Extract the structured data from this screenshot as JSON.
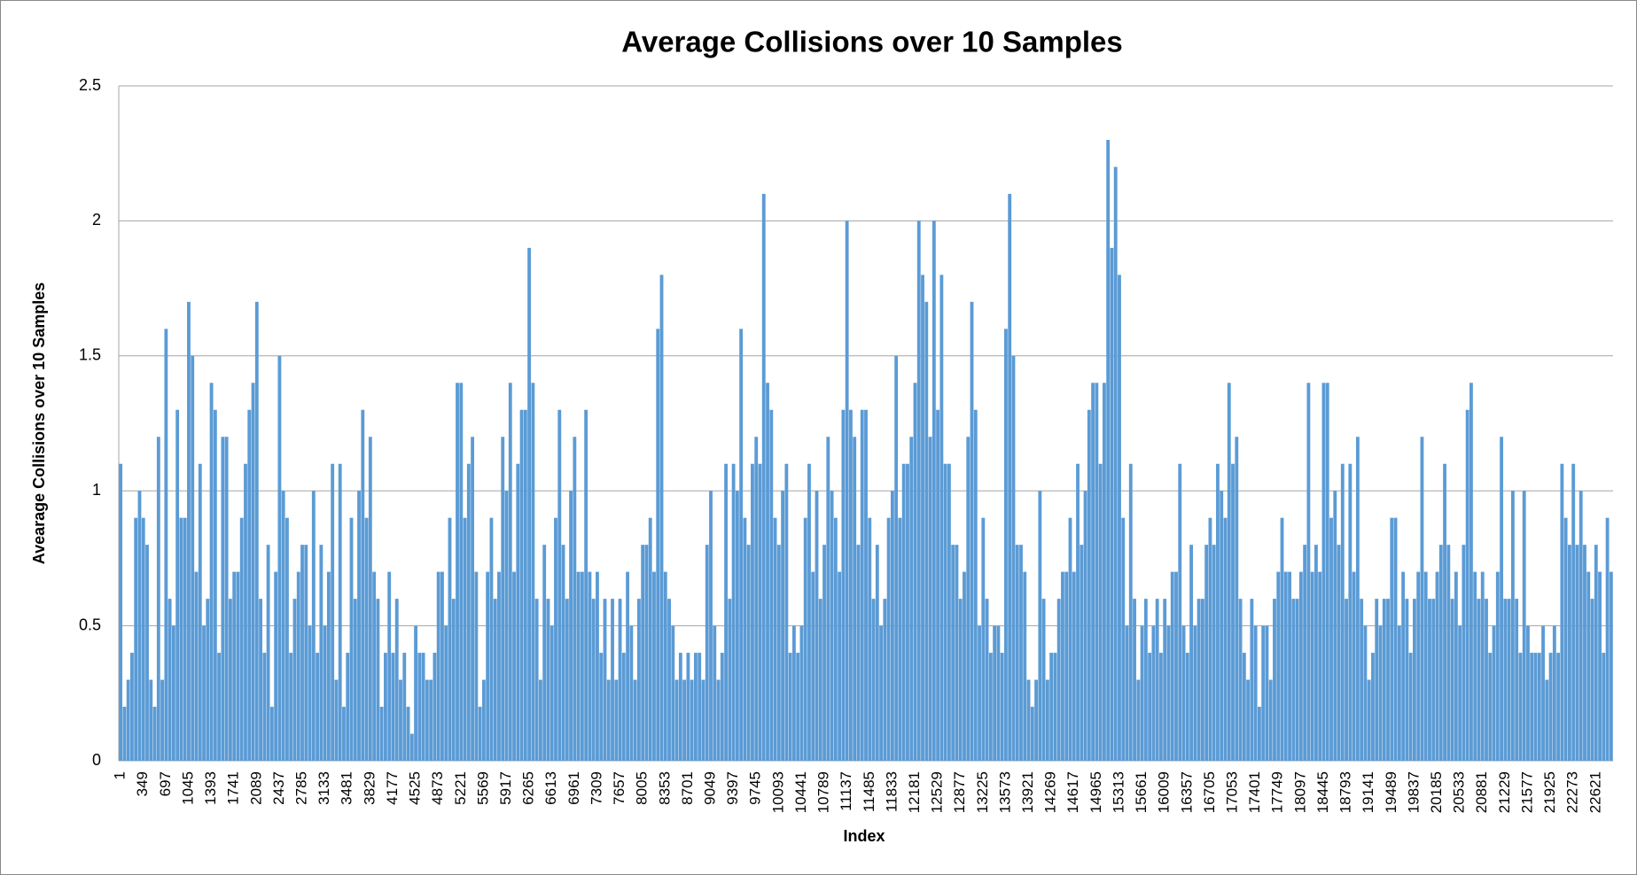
{
  "chart_data": {
    "type": "bar",
    "title": "Average Collisions over 10 Samples",
    "x_label": "Index",
    "y_label": "Avearage Collisions over 10 Samples",
    "color": "#5b9bd5",
    "grid": true,
    "ylim": [
      0,
      2.5
    ],
    "yticks": [
      0,
      0.5,
      1,
      1.5,
      2,
      2.5
    ],
    "categories": [
      1,
      null,
      null,
      null,
      null,
      null,
      349,
      null,
      null,
      null,
      null,
      null,
      697,
      null,
      null,
      null,
      null,
      null,
      1045,
      null,
      null,
      null,
      null,
      null,
      1393,
      null,
      null,
      null,
      null,
      null,
      1741,
      null,
      null,
      null,
      null,
      null,
      2089,
      null,
      null,
      null,
      null,
      null,
      2437,
      null,
      null,
      null,
      null,
      null,
      2785,
      null,
      null,
      null,
      null,
      null,
      3133,
      null,
      null,
      null,
      null,
      null,
      3481,
      null,
      null,
      null,
      null,
      null,
      3829,
      null,
      null,
      null,
      null,
      null,
      4177,
      null,
      null,
      null,
      null,
      null,
      4525,
      null,
      null,
      null,
      null,
      null,
      4873,
      null,
      null,
      null,
      null,
      null,
      5221,
      null,
      null,
      null,
      null,
      null,
      5569,
      null,
      null,
      null,
      null,
      null,
      5917,
      null,
      null,
      null,
      null,
      null,
      6265,
      null,
      null,
      null,
      null,
      null,
      6613,
      null,
      null,
      null,
      null,
      null,
      6961,
      null,
      null,
      null,
      null,
      null,
      7309,
      null,
      null,
      null,
      null,
      null,
      7657,
      null,
      null,
      null,
      null,
      null,
      8005,
      null,
      null,
      null,
      null,
      null,
      8353,
      null,
      null,
      null,
      null,
      null,
      8701,
      null,
      null,
      null,
      null,
      null,
      9049,
      null,
      null,
      null,
      null,
      null,
      9397,
      null,
      null,
      null,
      null,
      null,
      9745,
      null,
      null,
      null,
      null,
      null,
      10093,
      null,
      null,
      null,
      null,
      null,
      10441,
      null,
      null,
      null,
      null,
      null,
      10789,
      null,
      null,
      null,
      null,
      null,
      11137,
      null,
      null,
      null,
      null,
      null,
      11485,
      null,
      null,
      null,
      null,
      null,
      11833,
      null,
      null,
      null,
      null,
      null,
      12181,
      null,
      null,
      null,
      null,
      null,
      12529,
      null,
      null,
      null,
      null,
      null,
      12877,
      null,
      null,
      null,
      null,
      null,
      13225,
      null,
      null,
      null,
      null,
      null,
      13573,
      null,
      null,
      null,
      null,
      null,
      13921,
      null,
      null,
      null,
      null,
      null,
      14269,
      null,
      null,
      null,
      null,
      null,
      14617,
      null,
      null,
      null,
      null,
      null,
      14965,
      null,
      null,
      null,
      null,
      null,
      15313,
      null,
      null,
      null,
      null,
      null,
      15661,
      null,
      null,
      null,
      null,
      null,
      16009,
      null,
      null,
      null,
      null,
      null,
      16357,
      null,
      null,
      null,
      null,
      null,
      16705,
      null,
      null,
      null,
      null,
      null,
      17053,
      null,
      null,
      null,
      null,
      null,
      17401,
      null,
      null,
      null,
      null,
      null,
      17749,
      null,
      null,
      null,
      null,
      null,
      18097,
      null,
      null,
      null,
      null,
      null,
      18445,
      null,
      null,
      null,
      null,
      null,
      18793,
      null,
      null,
      null,
      null,
      null,
      19141,
      null,
      null,
      null,
      null,
      null,
      19489,
      null,
      null,
      null,
      null,
      null,
      19837,
      null,
      null,
      null,
      null,
      null,
      20185,
      null,
      null,
      null,
      null,
      null,
      20533,
      null,
      null,
      null,
      null,
      null,
      20881,
      null,
      null,
      null,
      null,
      null,
      21229,
      null,
      null,
      null,
      null,
      null,
      21577,
      null,
      null,
      null,
      null,
      null,
      21925,
      null,
      null,
      null,
      null,
      null,
      22273,
      null,
      null,
      null,
      null,
      null,
      22621,
      null,
      null,
      null,
      null
    ],
    "values": [
      1.1,
      0.2,
      0.3,
      0.4,
      0.9,
      1.0,
      0.9,
      0.8,
      0.3,
      0.2,
      1.2,
      0.3,
      1.6,
      0.6,
      0.5,
      1.3,
      0.9,
      0.9,
      1.7,
      1.5,
      0.7,
      1.1,
      0.5,
      0.6,
      1.4,
      1.3,
      0.4,
      1.2,
      1.2,
      0.6,
      0.7,
      0.7,
      0.9,
      1.1,
      1.3,
      1.4,
      1.7,
      0.6,
      0.4,
      0.8,
      0.2,
      0.7,
      1.5,
      1.0,
      0.9,
      0.4,
      0.6,
      0.7,
      0.8,
      0.8,
      0.5,
      1.0,
      0.4,
      0.8,
      0.5,
      0.7,
      1.1,
      0.3,
      1.1,
      0.2,
      0.4,
      0.9,
      0.6,
      1.0,
      1.3,
      0.9,
      1.2,
      0.7,
      0.6,
      0.2,
      0.4,
      0.7,
      0.4,
      0.6,
      0.3,
      0.4,
      0.2,
      0.1,
      0.5,
      0.4,
      0.4,
      0.3,
      0.3,
      0.4,
      0.7,
      0.7,
      0.5,
      0.9,
      0.6,
      1.4,
      1.4,
      0.9,
      1.1,
      1.2,
      0.7,
      0.2,
      0.3,
      0.7,
      0.9,
      0.6,
      0.7,
      1.2,
      1.0,
      1.4,
      0.7,
      1.1,
      1.3,
      1.3,
      1.9,
      1.4,
      0.6,
      0.3,
      0.8,
      0.6,
      0.5,
      0.9,
      1.3,
      0.8,
      0.6,
      1.0,
      1.2,
      0.7,
      0.7,
      1.3,
      0.7,
      0.6,
      0.7,
      0.4,
      0.6,
      0.3,
      0.6,
      0.3,
      0.6,
      0.4,
      0.7,
      0.5,
      0.3,
      0.6,
      0.8,
      0.8,
      0.9,
      0.7,
      1.6,
      1.8,
      0.7,
      0.6,
      0.5,
      0.3,
      0.4,
      0.3,
      0.4,
      0.3,
      0.4,
      0.4,
      0.3,
      0.8,
      1.0,
      0.5,
      0.3,
      0.4,
      1.1,
      0.6,
      1.1,
      1.0,
      1.6,
      0.9,
      0.8,
      1.1,
      1.2,
      1.1,
      2.1,
      1.4,
      1.3,
      0.9,
      0.8,
      1.0,
      1.1,
      0.4,
      0.5,
      0.4,
      0.5,
      0.9,
      1.1,
      0.7,
      1.0,
      0.6,
      0.8,
      1.2,
      1.0,
      0.9,
      0.7,
      1.3,
      2.0,
      1.3,
      1.2,
      0.8,
      1.3,
      1.3,
      0.9,
      0.6,
      0.8,
      0.5,
      0.6,
      0.9,
      1.0,
      1.5,
      0.9,
      1.1,
      1.1,
      1.2,
      1.4,
      2.0,
      1.8,
      1.7,
      1.2,
      2.0,
      1.3,
      1.8,
      1.1,
      1.1,
      0.8,
      0.8,
      0.6,
      0.7,
      1.2,
      1.7,
      1.3,
      0.5,
      0.9,
      0.6,
      0.4,
      0.5,
      0.5,
      0.4,
      1.6,
      2.1,
      1.5,
      0.8,
      0.8,
      0.7,
      0.3,
      0.2,
      0.3,
      1.0,
      0.6,
      0.3,
      0.4,
      0.4,
      0.6,
      0.7,
      0.7,
      0.9,
      0.7,
      1.1,
      0.8,
      1.0,
      1.3,
      1.4,
      1.4,
      1.1,
      1.4,
      2.3,
      1.9,
      2.2,
      1.8,
      0.9,
      0.5,
      1.1,
      0.6,
      0.3,
      0.5,
      0.6,
      0.4,
      0.5,
      0.6,
      0.4,
      0.6,
      0.5,
      0.7,
      0.7,
      1.1,
      0.5,
      0.4,
      0.8,
      0.5,
      0.6,
      0.6,
      0.8,
      0.9,
      0.8,
      1.1,
      1.0,
      0.9,
      1.4,
      1.1,
      1.2,
      0.6,
      0.4,
      0.3,
      0.6,
      0.5,
      0.2,
      0.5,
      0.5,
      0.3,
      0.6,
      0.7,
      0.9,
      0.7,
      0.7,
      0.6,
      0.6,
      0.7,
      0.8,
      1.4,
      0.7,
      0.8,
      0.7,
      1.4,
      1.4,
      0.9,
      1.0,
      0.8,
      1.1,
      0.6,
      1.1,
      0.7,
      1.2,
      0.6,
      0.5,
      0.3,
      0.4,
      0.6,
      0.5,
      0.6,
      0.6,
      0.9,
      0.9,
      0.5,
      0.7,
      0.6,
      0.4,
      0.6,
      0.7,
      1.2,
      0.7,
      0.6,
      0.6,
      0.7,
      0.8,
      1.1,
      0.8,
      0.6,
      0.7,
      0.5,
      0.8,
      1.3,
      1.4,
      0.7,
      0.6,
      0.7,
      0.6,
      0.4,
      0.5,
      0.7,
      1.2,
      0.6,
      0.6,
      1.0,
      0.6,
      0.4,
      1.0,
      0.5,
      0.4,
      0.4,
      0.4,
      0.5,
      0.3,
      0.4,
      0.5,
      0.4,
      1.1,
      0.9,
      0.8,
      1.1,
      0.8,
      1.0,
      0.8,
      0.7,
      0.6,
      0.8,
      0.7,
      0.4,
      0.9,
      0.7
    ]
  }
}
